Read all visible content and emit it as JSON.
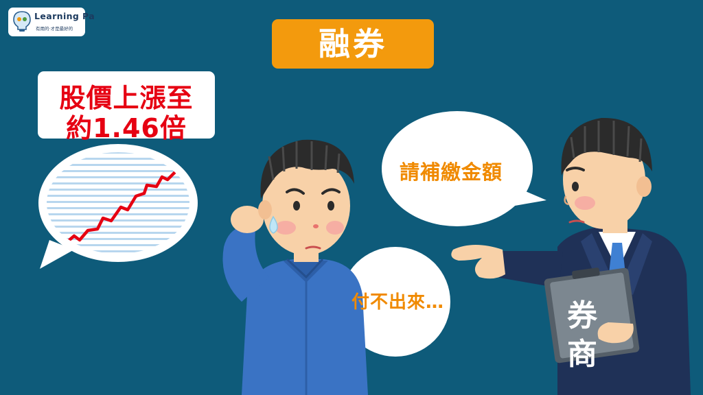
{
  "logo": {
    "title": "Learning Pa",
    "subtitle": "有用的·才是最好的"
  },
  "title": "融券",
  "price_callout": {
    "line1": "股價上漲至",
    "line2": "約1.46倍"
  },
  "broker_speech": "請補繳金額",
  "investor_speech": "付不出來…",
  "clipboard": {
    "line1": "券",
    "line2": "商"
  },
  "colors": {
    "background": "#0e5b7a",
    "title_orange": "#f39a0d",
    "speech_orange": "#f08a00",
    "price_red": "#e60012",
    "chart_line": "#e60012",
    "investor_shirt": "#3a73c4",
    "broker_suit": "#1f3157"
  }
}
